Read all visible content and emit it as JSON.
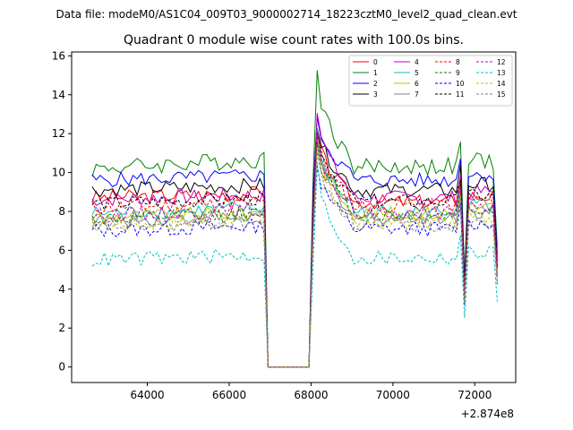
{
  "header": {
    "file_label": "Data file: modeM0/AS1C04_009T03_9000002714_18223cztM0_level2_quad_clean.evt"
  },
  "chart_data": {
    "type": "line",
    "title": "Quadrant 0 module wise count rates with 100.0s bins.",
    "xlabel": "",
    "ylabel": "",
    "x_offset_label": "+2.874e8",
    "xlim": [
      62150,
      73000
    ],
    "ylim": [
      -0.8,
      16.2
    ],
    "x_ticks": [
      64000,
      66000,
      68000,
      70000,
      72000
    ],
    "x_tick_labels": [
      "64000",
      "66000",
      "68000",
      "70000",
      "72000"
    ],
    "y_ticks": [
      0,
      2,
      4,
      6,
      8,
      10,
      12,
      14,
      16
    ],
    "y_tick_labels": [
      "0",
      "2",
      "4",
      "6",
      "8",
      "10",
      "12",
      "14",
      "16"
    ],
    "segment_note": "x values are offsets; bins of 100 s from 62650 to 72550; data gap 66950-67950",
    "x": [
      62650,
      62750,
      62850,
      62950,
      63050,
      63150,
      63250,
      63350,
      63450,
      63550,
      63650,
      63750,
      63850,
      63950,
      64050,
      64150,
      64250,
      64350,
      64450,
      64550,
      64650,
      64750,
      64850,
      64950,
      65050,
      65150,
      65250,
      65350,
      65450,
      65550,
      65650,
      65750,
      65850,
      65950,
      66050,
      66150,
      66250,
      66350,
      66450,
      66550,
      66650,
      66750,
      66850,
      66950,
      67050,
      67150,
      67250,
      67350,
      67450,
      67550,
      67650,
      67750,
      67850,
      67950,
      68050,
      68150,
      68250,
      68350,
      68450,
      68550,
      68650,
      68750,
      68850,
      68950,
      69050,
      69150,
      69250,
      69350,
      69450,
      69550,
      69650,
      69750,
      69850,
      69950,
      70050,
      70150,
      70250,
      70350,
      70450,
      70550,
      70650,
      70750,
      70850,
      70950,
      71050,
      71150,
      71250,
      71350,
      71450,
      71550,
      71650,
      71750,
      71850,
      71950,
      72050,
      72150,
      72250,
      72350,
      72450,
      72550
    ],
    "legend": {
      "placement": "top-right",
      "columns": 4
    },
    "series": [
      {
        "name": "0",
        "color": "#ff0000",
        "dash": "solid",
        "base": 8.7,
        "post_peak": 12.2,
        "post_base": 8.5
      },
      {
        "name": "1",
        "color": "#008000",
        "dash": "solid",
        "base": 10.2,
        "post_peak": 15.3,
        "post_base": 10.3
      },
      {
        "name": "2",
        "color": "#0000ff",
        "dash": "solid",
        "base": 9.6,
        "post_peak": 13.0,
        "post_base": 9.6
      },
      {
        "name": "3",
        "color": "#000000",
        "dash": "solid",
        "base": 9.1,
        "post_peak": 12.5,
        "post_base": 9.1
      },
      {
        "name": "4",
        "color": "#c000c0",
        "dash": "solid",
        "base": 8.6,
        "post_peak": 13.4,
        "post_base": 8.7
      },
      {
        "name": "5",
        "color": "#00c0c0",
        "dash": "solid",
        "base": 7.9,
        "post_peak": 12.0,
        "post_base": 8.0
      },
      {
        "name": "6",
        "color": "#c0c000",
        "dash": "solid",
        "base": 7.7,
        "post_peak": 11.7,
        "post_base": 7.9
      },
      {
        "name": "7",
        "color": "#808080",
        "dash": "solid",
        "base": 7.5,
        "post_peak": 11.5,
        "post_base": 7.7
      },
      {
        "name": "8",
        "color": "#ff0000",
        "dash": "dashed",
        "base": 8.2,
        "post_peak": 12.0,
        "post_base": 8.3
      },
      {
        "name": "9",
        "color": "#008000",
        "dash": "dashed",
        "base": 7.6,
        "post_peak": 11.6,
        "post_base": 7.8
      },
      {
        "name": "10",
        "color": "#0000ff",
        "dash": "dashed",
        "base": 7.0,
        "post_peak": 10.5,
        "post_base": 7.1
      },
      {
        "name": "11",
        "color": "#000000",
        "dash": "dashed",
        "base": 8.4,
        "post_peak": 12.3,
        "post_base": 8.5
      },
      {
        "name": "12",
        "color": "#c000c0",
        "dash": "dashed",
        "base": 7.8,
        "post_peak": 11.9,
        "post_base": 7.9
      },
      {
        "name": "13",
        "color": "#00c0c0",
        "dash": "dashed",
        "base": 5.5,
        "post_peak": 10.3,
        "post_base": 5.6
      },
      {
        "name": "14",
        "color": "#c0c000",
        "dash": "dashed",
        "base": 7.3,
        "post_peak": 11.2,
        "post_base": 7.4
      },
      {
        "name": "15",
        "color": "#808080",
        "dash": "dashed",
        "base": 7.2,
        "post_peak": 11.0,
        "post_base": 7.3
      }
    ]
  }
}
